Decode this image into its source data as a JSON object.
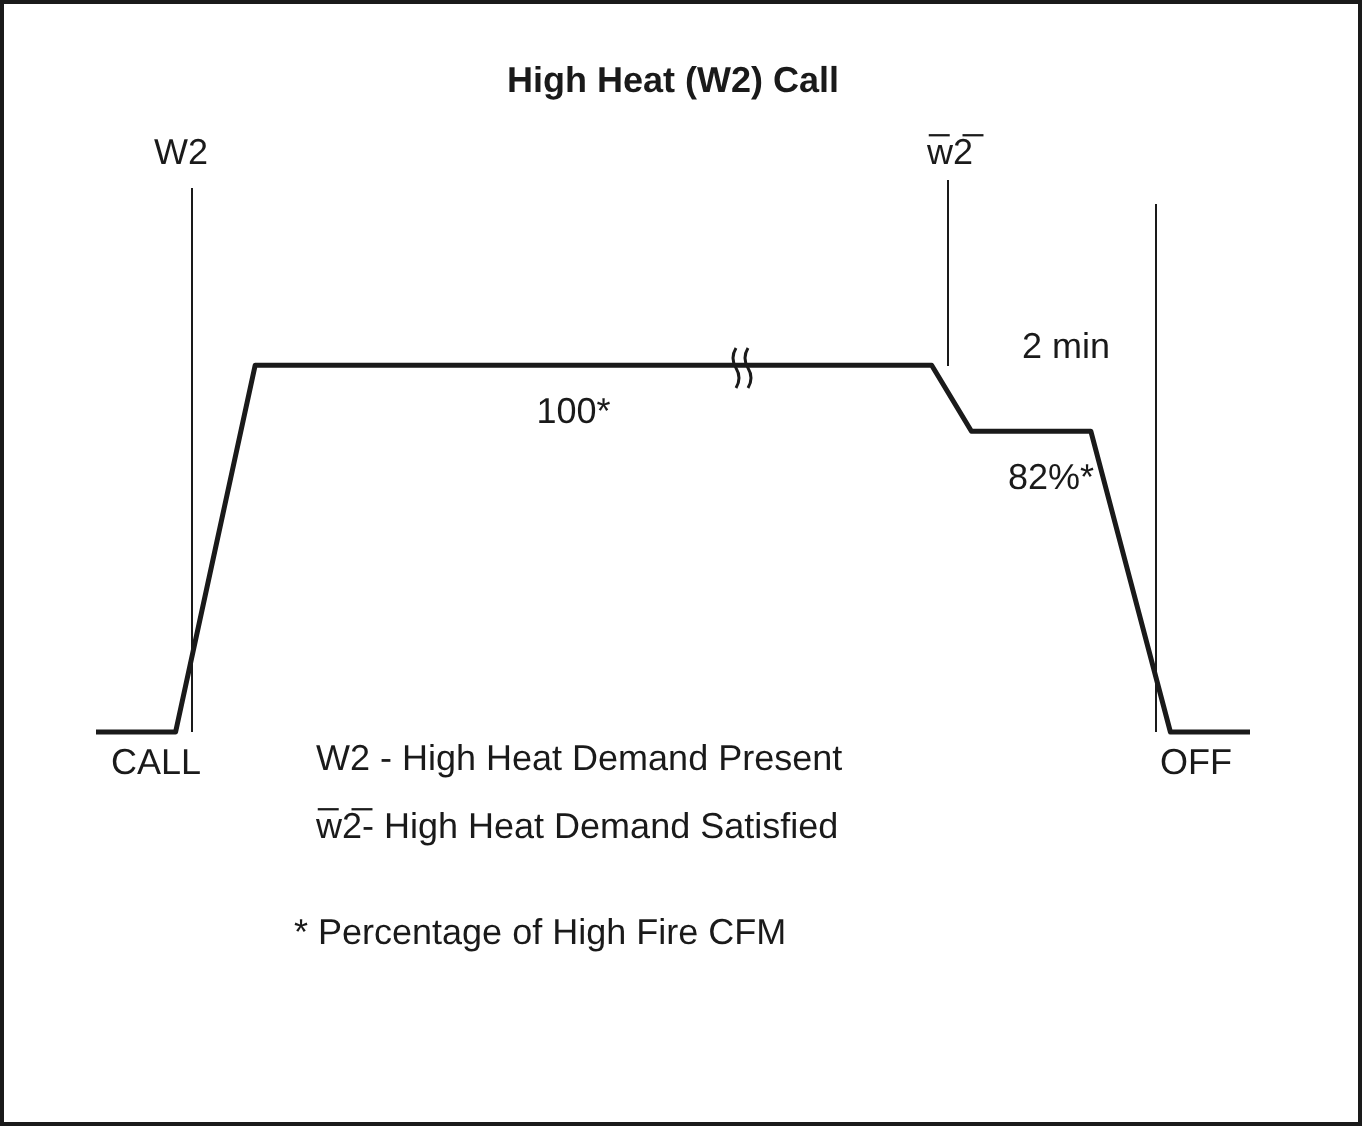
{
  "chart_data": {
    "type": "line",
    "title": "High Heat (W2) Call",
    "categories": [
      null,
      null,
      null,
      null,
      null,
      null,
      null,
      null,
      null,
      null,
      null,
      null,
      null,
      null,
      null,
      null,
      null,
      null,
      null,
      null,
      null,
      null,
      null,
      null,
      null,
      null,
      null,
      null,
      null,
      null
    ],
    "series": [
      {
        "color": "#1a1a1a",
        "values": [
          0,
          0,
          0,
          50,
          100,
          100,
          100,
          100,
          100,
          100,
          100,
          100,
          100,
          100,
          100,
          100,
          100,
          100,
          100,
          100,
          100,
          100,
          82,
          82,
          82,
          82,
          41,
          0,
          0,
          0
        ],
        "value_labels": [
          null,
          null,
          null,
          null,
          null,
          null,
          null,
          null,
          null,
          null,
          null,
          null,
          "100*",
          null,
          null,
          null,
          null,
          null,
          null,
          null,
          null,
          null,
          null,
          null,
          "82%*",
          null,
          null,
          null,
          null,
          null
        ]
      }
    ],
    "annotations": [
      "W2",
      "w̅2̅",
      "2 min",
      "CALL",
      "OFF",
      "W2 - High Heat Demand Present",
      "w̅2̅- High Heat Demand Satisfied",
      "* Percentage of High Fire CFM"
    ],
    "tick_labels": false,
    "marker": "none",
    "line_style": "solid"
  }
}
